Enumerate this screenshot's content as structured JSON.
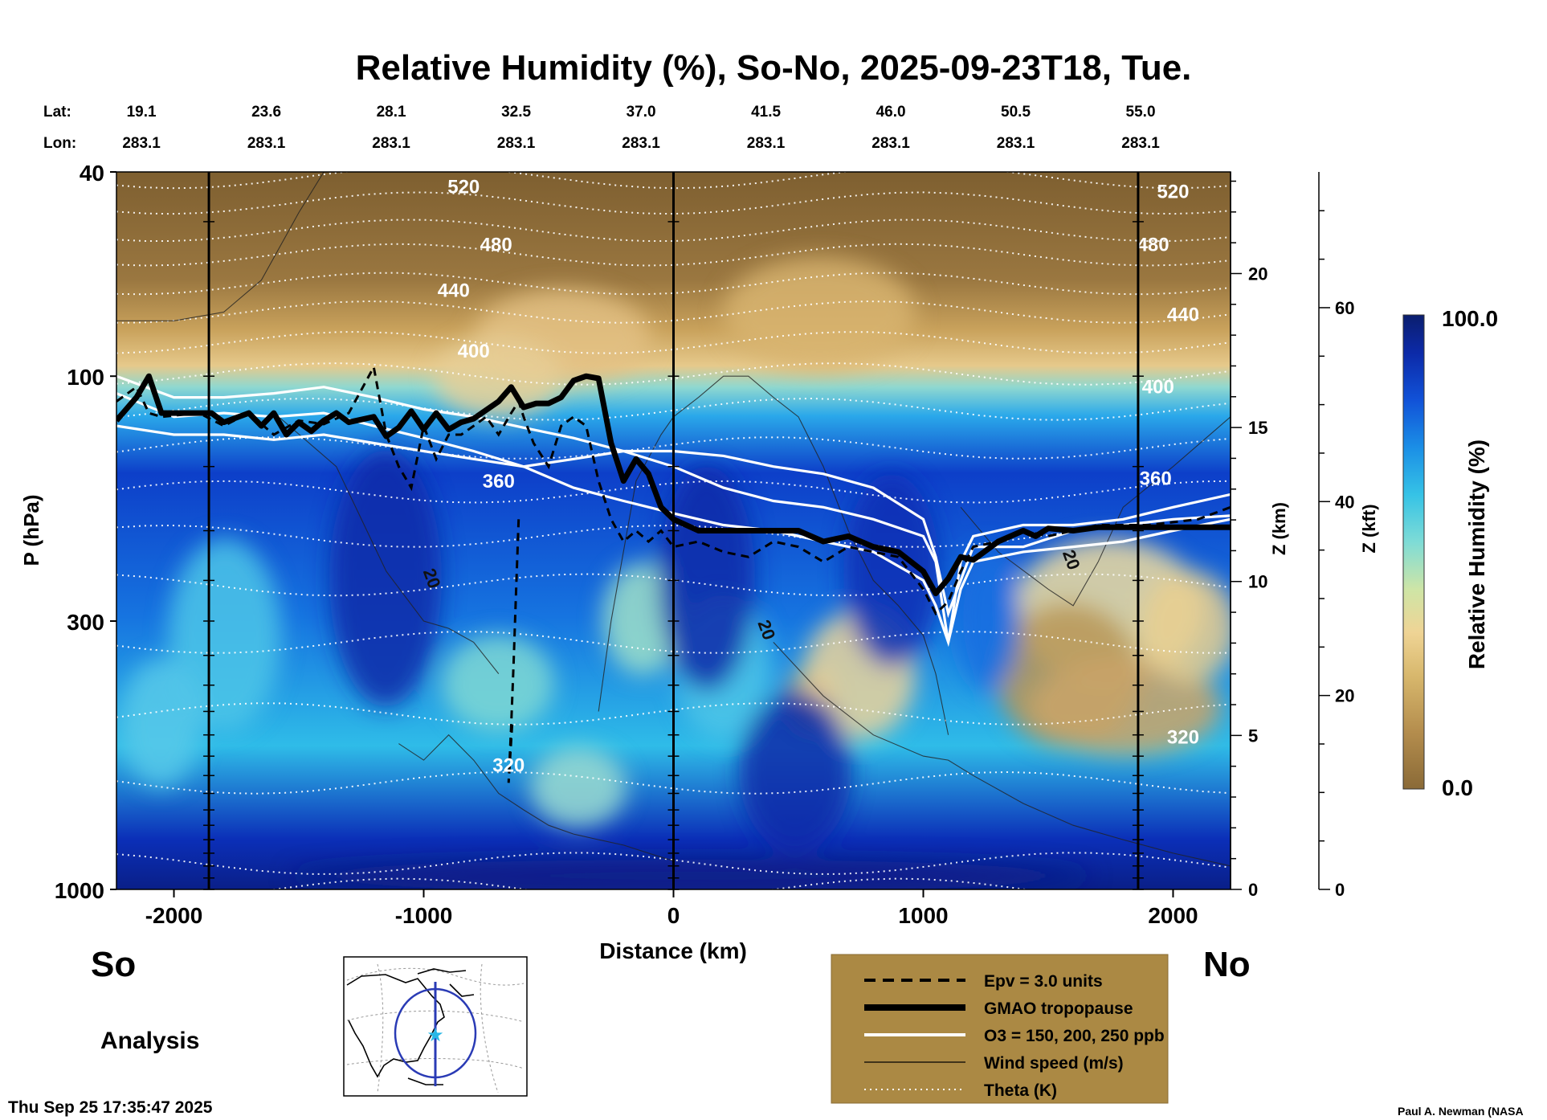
{
  "chart_data": {
    "type": "heatmap",
    "title": "Relative Humidity (%), So-No, 2025-09-23T18, Tue.",
    "xlabel": "Distance (km)",
    "ylabel": "P (hPa)",
    "z_km_label": "Z (km)",
    "z_kft_label": "Z (kft)",
    "x_ticks": [
      "-2000",
      "-1000",
      "0",
      "1000",
      "2000"
    ],
    "x_tick_values": [
      -2000,
      -1000,
      0,
      1000,
      2000
    ],
    "xlim": [
      -2230,
      2230
    ],
    "y_ticks": [
      "40",
      "100",
      "300",
      "1000"
    ],
    "y_tick_values": [
      40,
      100,
      300,
      1000
    ],
    "ylim": [
      1000,
      40
    ],
    "y_scale": "log",
    "z_km_ticks": [
      "0",
      "5",
      "10",
      "15",
      "20"
    ],
    "z_kft_ticks": [
      "0",
      "20",
      "40",
      "60"
    ],
    "lat_label": "Lat:",
    "lon_label": "Lon:",
    "lat_values": [
      "19.1",
      "23.6",
      "28.1",
      "32.5",
      "37.0",
      "41.5",
      "46.0",
      "50.5",
      "55.0"
    ],
    "lon_values": [
      "283.1",
      "283.1",
      "283.1",
      "283.1",
      "283.1",
      "283.1",
      "283.1",
      "283.1",
      "283.1"
    ],
    "lat_lon_x": [
      -2130,
      -1630,
      -1130,
      -630,
      -130,
      370,
      870,
      1370,
      1870
    ],
    "south_label": "So",
    "north_label": "No",
    "analysis_label": "Analysis",
    "timestamp": "Thu Sep 25 17:35:47 2025",
    "credit": "Paul A. Newman (NASA",
    "colorbar": {
      "label": "Relative Humidity (%)",
      "max_label": "100.0",
      "min_label": "0.0",
      "range": [
        0,
        100
      ]
    },
    "legend": [
      {
        "style": "dashed",
        "label": "Epv = 3.0 units"
      },
      {
        "style": "thick",
        "label": "GMAO tropopause"
      },
      {
        "style": "white",
        "label": "O3 = 150, 200, 250 ppb"
      },
      {
        "style": "thin",
        "label": "Wind speed (m/s)"
      },
      {
        "style": "dotted",
        "label": "Theta (K)"
      }
    ],
    "theta_labels": [
      {
        "text": "520",
        "x": -840,
        "p": 44
      },
      {
        "text": "480",
        "x": -710,
        "p": 57
      },
      {
        "text": "440",
        "x": -880,
        "p": 70
      },
      {
        "text": "400",
        "x": -800,
        "p": 92
      },
      {
        "text": "360",
        "x": -700,
        "p": 165
      },
      {
        "text": "320",
        "x": -660,
        "p": 590
      },
      {
        "text": "520",
        "x": 2000,
        "p": 45
      },
      {
        "text": "480",
        "x": 1920,
        "p": 57
      },
      {
        "text": "440",
        "x": 2040,
        "p": 78
      },
      {
        "text": "400",
        "x": 1940,
        "p": 108
      },
      {
        "text": "360",
        "x": 1930,
        "p": 163
      },
      {
        "text": "320",
        "x": 2040,
        "p": 520
      }
    ],
    "wind_labels": [
      {
        "text": "20",
        "x": -990,
        "p": 250
      },
      {
        "text": "20",
        "x": 350,
        "p": 315
      },
      {
        "text": "20",
        "x": 1570,
        "p": 230
      }
    ],
    "tropopause": {
      "x": [
        -2230,
        -2150,
        -2100,
        -2050,
        -1900,
        -1850,
        -1800,
        -1700,
        -1650,
        -1600,
        -1550,
        -1500,
        -1450,
        -1400,
        -1350,
        -1300,
        -1200,
        -1150,
        -1100,
        -1050,
        -1000,
        -950,
        -900,
        -850,
        -800,
        -700,
        -650,
        -600,
        -550,
        -500,
        -450,
        -400,
        -350,
        -300,
        -250,
        -200,
        -150,
        -100,
        -50,
        0,
        100,
        200,
        300,
        400,
        500,
        600,
        700,
        800,
        900,
        1000,
        1050,
        1100,
        1150,
        1200,
        1300,
        1400,
        1450,
        1500,
        1600,
        1700,
        2000,
        2230
      ],
      "p": [
        122,
        110,
        100,
        118,
        118,
        118,
        123,
        118,
        125,
        118,
        130,
        123,
        128,
        122,
        118,
        123,
        120,
        131,
        126,
        117,
        127,
        118,
        127,
        123,
        121,
        112,
        105,
        115,
        113,
        113,
        110,
        102,
        100,
        101,
        135,
        160,
        145,
        155,
        180,
        190,
        200,
        200,
        200,
        200,
        200,
        210,
        205,
        215,
        220,
        240,
        265,
        248,
        225,
        228,
        210,
        200,
        205,
        198,
        200,
        197,
        197,
        197
      ]
    },
    "epv": {
      "x": [
        -2230,
        -2150,
        -2100,
        -2050,
        -1900,
        -1800,
        -1700,
        -1600,
        -1500,
        -1400,
        -1300,
        -1200,
        -1150,
        -1100,
        -1050,
        -1000,
        -950,
        -900,
        -850,
        -800,
        -750,
        -700,
        -650,
        -620,
        -600,
        -560,
        -500,
        -450,
        -400,
        -350,
        -300,
        -250,
        -200,
        -150,
        -100,
        -50,
        0,
        100,
        200,
        300,
        400,
        500,
        600,
        700,
        800,
        900,
        1000,
        1050,
        1100,
        1150,
        1200,
        1300,
        1400,
        1500,
        1700,
        1900,
        2100,
        2230
      ],
      "p": [
        112,
        105,
        118,
        120,
        118,
        125,
        118,
        130,
        122,
        124,
        118,
        96,
        130,
        150,
        165,
        125,
        145,
        130,
        130,
        125,
        120,
        130,
        118,
        112,
        120,
        135,
        150,
        125,
        120,
        125,
        160,
        190,
        210,
        200,
        210,
        200,
        215,
        210,
        220,
        225,
        210,
        215,
        230,
        215,
        220,
        225,
        260,
        290,
        275,
        240,
        215,
        210,
        200,
        205,
        195,
        195,
        190,
        180
      ]
    },
    "epv_drop": {
      "x": [
        -620,
        -630,
        -640,
        -650,
        -660,
        -645
      ],
      "p": [
        190,
        260,
        360,
        480,
        620,
        470
      ]
    },
    "o3_contours": [
      {
        "x": [
          -2230,
          -2000,
          -1800,
          -1600,
          -1400,
          -1200,
          -1000,
          -800,
          -600,
          -400,
          -200,
          0,
          200,
          400,
          600,
          800,
          1000,
          1050,
          1100,
          1150,
          1200,
          1400,
          1600,
          1800,
          2000,
          2230
        ],
        "p": [
          100,
          110,
          110,
          108,
          105,
          110,
          116,
          120,
          126,
          132,
          140,
          150,
          165,
          175,
          180,
          190,
          205,
          230,
          330,
          230,
          205,
          195,
          195,
          190,
          180,
          170
        ]
      },
      {
        "x": [
          -2230,
          -2000,
          -1800,
          -1600,
          -1400,
          -1200,
          -1000,
          -800,
          -600,
          -400,
          -200,
          0,
          200,
          400,
          600,
          800,
          1000,
          1050,
          1100,
          1150,
          1200,
          1400,
          1600,
          1800,
          2000,
          2230
        ],
        "p": [
          108,
          120,
          118,
          120,
          118,
          125,
          132,
          140,
          150,
          165,
          175,
          185,
          195,
          200,
          210,
          220,
          250,
          280,
          330,
          260,
          230,
          220,
          215,
          210,
          200,
          190
        ]
      },
      {
        "x": [
          -2230,
          -2000,
          -1800,
          -1600,
          -1400,
          -1200,
          -1000,
          -800,
          -600,
          -400,
          -200,
          0,
          200,
          400,
          600,
          800,
          1000,
          1050,
          1100,
          1150,
          1200,
          1400,
          1600,
          1800,
          2000,
          2230
        ],
        "p": [
          125,
          130,
          130,
          133,
          130,
          135,
          140,
          145,
          150,
          145,
          140,
          140,
          143,
          150,
          155,
          165,
          190,
          225,
          290,
          250,
          215,
          215,
          200,
          195,
          190,
          187
        ]
      }
    ],
    "theta_levels_p": [
      1000,
      890,
      620,
      455,
      330,
      255,
      205,
      168,
      138,
      116,
      99,
      86,
      75,
      66,
      58,
      52,
      46,
      41
    ],
    "wind_contours": [
      {
        "x": [
          -2230,
          -2000,
          -1800,
          -1650,
          -1500,
          -1400
        ],
        "p": [
          78,
          78,
          75,
          65,
          48,
          40
        ]
      },
      {
        "x": [
          -1580,
          -1350,
          -1150,
          -1000,
          -900,
          -800,
          -700
        ],
        "p": [
          120,
          150,
          240,
          300,
          310,
          330,
          380
        ]
      },
      {
        "x": [
          -1100,
          -1000,
          -900,
          -800,
          -700,
          -600,
          -500,
          -400,
          -300,
          -200,
          -100,
          0
        ],
        "p": [
          520,
          560,
          500,
          560,
          650,
          700,
          750,
          780,
          800,
          820,
          850,
          880
        ]
      },
      {
        "x": [
          -300,
          -250,
          -150,
          -50,
          0,
          100,
          200,
          300,
          400,
          500,
          600,
          700,
          800,
          900,
          1000,
          1050,
          1100
        ],
        "p": [
          450,
          300,
          160,
          130,
          120,
          110,
          100,
          100,
          110,
          120,
          150,
          200,
          250,
          280,
          320,
          380,
          500
        ]
      },
      {
        "x": [
          400,
          600,
          800,
          1000,
          1100,
          1200,
          1400,
          1600,
          1800,
          2000,
          2230
        ],
        "p": [
          330,
          420,
          500,
          550,
          560,
          600,
          680,
          750,
          800,
          850,
          900
        ]
      },
      {
        "x": [
          1150,
          1300,
          1500,
          1600,
          1700,
          1800,
          2000,
          2230
        ],
        "p": [
          180,
          220,
          260,
          280,
          230,
          180,
          150,
          120
        ]
      }
    ]
  }
}
